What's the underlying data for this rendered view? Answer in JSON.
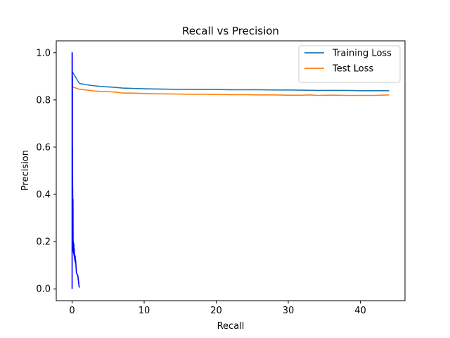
{
  "chart_data": {
    "type": "line",
    "title": "Recall vs Precision",
    "xlabel": "Recall",
    "ylabel": "Precision",
    "xlim": [
      -2.2,
      46.2
    ],
    "ylim": [
      -0.05,
      1.05
    ],
    "xticks": [
      0,
      10,
      20,
      30,
      40
    ],
    "yticks": [
      0.0,
      0.2,
      0.4,
      0.6,
      0.8,
      1.0
    ],
    "xtick_labels": [
      "0",
      "10",
      "20",
      "30",
      "40"
    ],
    "ytick_labels": [
      "0.0",
      "0.2",
      "0.4",
      "0.6",
      "0.8",
      "1.0"
    ],
    "grid": false,
    "legend_position": "top-right",
    "series": [
      {
        "name": "Training Loss",
        "color": "#1f77b4",
        "x": [
          0,
          1,
          2,
          3,
          4,
          5,
          6,
          7,
          8,
          9,
          10,
          12,
          14,
          16,
          18,
          20,
          22,
          24,
          26,
          28,
          30,
          32,
          34,
          36,
          38,
          40,
          42,
          44
        ],
        "y": [
          0.92,
          0.87,
          0.864,
          0.86,
          0.857,
          0.855,
          0.853,
          0.85,
          0.849,
          0.848,
          0.847,
          0.846,
          0.845,
          0.845,
          0.844,
          0.844,
          0.843,
          0.843,
          0.843,
          0.842,
          0.842,
          0.841,
          0.84,
          0.84,
          0.84,
          0.839,
          0.839,
          0.839
        ]
      },
      {
        "name": "Test Loss",
        "color": "#ff7f0e",
        "x": [
          0,
          1,
          2,
          3,
          4,
          5,
          6,
          7,
          8,
          9,
          10,
          12,
          14,
          16,
          18,
          20,
          22,
          24,
          26,
          28,
          30,
          32,
          33,
          34,
          36,
          38,
          40,
          42,
          44
        ],
        "y": [
          0.856,
          0.845,
          0.842,
          0.838,
          0.836,
          0.835,
          0.833,
          0.829,
          0.829,
          0.828,
          0.827,
          0.826,
          0.825,
          0.824,
          0.824,
          0.823,
          0.822,
          0.822,
          0.821,
          0.821,
          0.82,
          0.82,
          0.821,
          0.819,
          0.82,
          0.819,
          0.819,
          0.819,
          0.821
        ]
      },
      {
        "name": "",
        "color": "#0000ff",
        "x": [
          0,
          0,
          0.02,
          0.02,
          0.04,
          0.04,
          0.06,
          0.08,
          0.08,
          0.1,
          0.12,
          0.14,
          0.16,
          0.18,
          0.2,
          0.24,
          0.28,
          0.3,
          0.32,
          0.34,
          0.38,
          0.42,
          0.46,
          0.5,
          0.55,
          0.6,
          0.65,
          0.7,
          0.75,
          0.8,
          0.85,
          0.9,
          0.95,
          1.0
        ],
        "y": [
          0.0,
          1.0,
          0.998,
          0.4,
          0.9,
          0.2,
          0.6,
          0.25,
          0.43,
          0.22,
          0.38,
          0.18,
          0.16,
          0.2,
          0.15,
          0.19,
          0.14,
          0.17,
          0.13,
          0.15,
          0.12,
          0.14,
          0.11,
          0.12,
          0.09,
          0.07,
          0.065,
          0.06,
          0.06,
          0.055,
          0.04,
          0.03,
          0.015,
          0.005
        ]
      }
    ]
  }
}
